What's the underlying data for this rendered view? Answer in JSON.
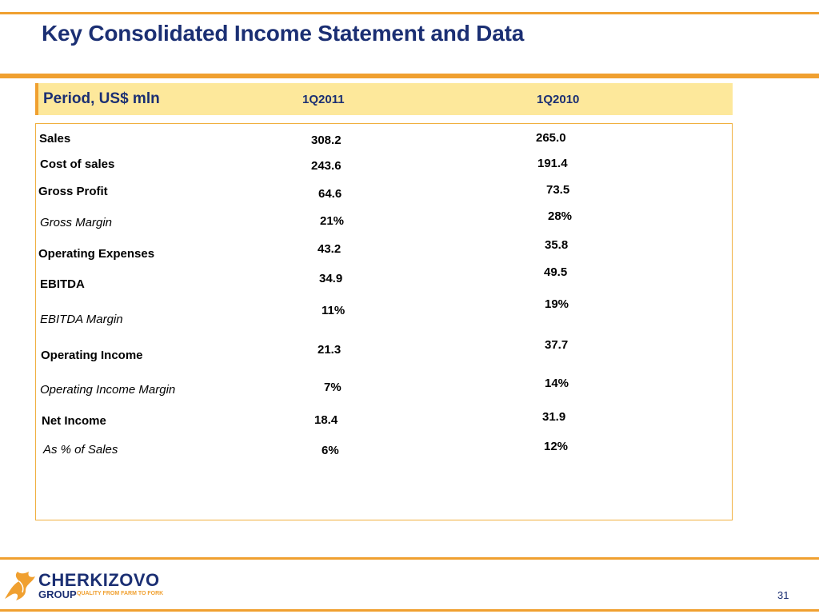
{
  "slide": {
    "title": "Key Consolidated Income Statement and Data",
    "page_number": "31"
  },
  "table": {
    "period_label": "Period, US$ mln",
    "columns": [
      "1Q2011",
      "1Q2010"
    ],
    "rows": [
      {
        "label": "Sales",
        "v1": "308.2",
        "v2": "265.0",
        "style": "bold"
      },
      {
        "label": "Cost of sales",
        "v1": "243.6",
        "v2": "191.4",
        "style": "bold"
      },
      {
        "label": "Gross Profit",
        "v1": "64.6",
        "v2": "73.5",
        "style": "bold"
      },
      {
        "label": "Gross Margin",
        "v1": "21%",
        "v2": "28%",
        "style": "italic"
      },
      {
        "label": "Operating Expenses",
        "v1": "43.2",
        "v2": "35.8",
        "style": "bold"
      },
      {
        "label": "EBITDA",
        "v1": "34.9",
        "v2": "49.5",
        "style": "bold"
      },
      {
        "label": "EBITDA Margin",
        "v1": "11%",
        "v2": "19%",
        "style": "italic"
      },
      {
        "label": "Operating Income",
        "v1": "21.3",
        "v2": "37.7",
        "style": "bold"
      },
      {
        "label": "Operating Income Margin",
        "v1": "7%",
        "v2": "14%",
        "style": "italic"
      },
      {
        "label": "Net Income",
        "v1": "18.4",
        "v2": "31.9",
        "style": "bold"
      },
      {
        "label": "As % of Sales",
        "v1": "6%",
        "v2": "12%",
        "style": "italic"
      }
    ]
  },
  "logo": {
    "name": "CHERKIZOVO",
    "group": "GROUP",
    "tagline": "QUALITY FROM FARM TO FORK",
    "icon": "rooster-icon",
    "colors": {
      "brand_blue": "#1b2f73",
      "brand_orange": "#f0a030"
    }
  }
}
